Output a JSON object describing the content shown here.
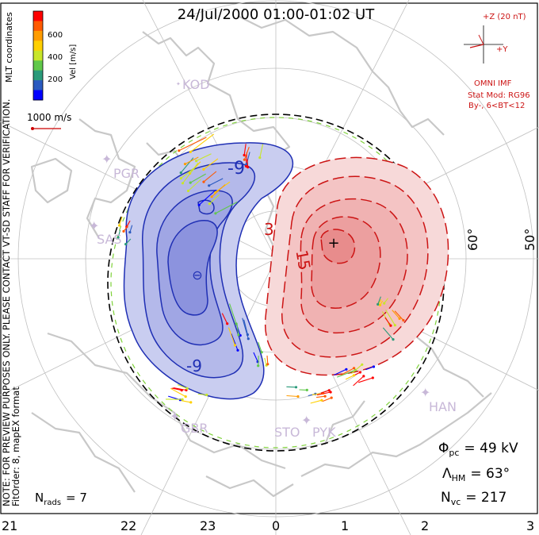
{
  "title": "24/Jul/2000 01:00-01:02 UT",
  "coord_label": "MLT coordinates",
  "color_bar": {
    "label": "Vel [m/s]",
    "ticks": [
      "600",
      "400",
      "200"
    ],
    "colors": [
      "#ff0000",
      "#ff5a00",
      "#ff9c00",
      "#ffd000",
      "#c8e62a",
      "#60c84a",
      "#2a9a7a",
      "#2a5ac0",
      "#0000ff"
    ]
  },
  "scale_vector": {
    "label": "1000 m/s",
    "color": "#cc0000"
  },
  "side_notes": [
    "NOTE: FOR PREVIEW PURPOSES ONLY. PLEASE CONTACT VT-SD STAFF FOR VERIFICATION.",
    "FitOrder: 8, mapEX format"
  ],
  "imf": {
    "z_label": "+Z (20 nT)",
    "y_label": "+Y",
    "source": "OMNI IMF",
    "model": "Stat Mod: RG96",
    "condition": "By-, 6<BT<12"
  },
  "latitude_labels": [
    "60°",
    "50°"
  ],
  "mlt_labels": [
    "21",
    "22",
    "23",
    "0",
    "1",
    "2",
    "3"
  ],
  "stations": [
    "KOD",
    "PGR",
    "SAS",
    "GBR",
    "STO",
    "PYK",
    "HAN"
  ],
  "contours": {
    "negative_label": "-9",
    "negative_label_lower": "-9",
    "positive_label": "3",
    "positive_label_inner": "15"
  },
  "stats": {
    "phi_pc_symbol": "Φ",
    "phi_pc_sub": "pc",
    "phi_pc_value": "= 49 kV",
    "lambda_symbol": "Λ",
    "lambda_sub": "HM",
    "lambda_value": "= 63°",
    "nvc_symbol": "N",
    "nvc_sub": "vc",
    "nvc_value": "= 217",
    "nrads_symbol": "N",
    "nrads_sub": "rads",
    "nrads_value": "= 7"
  },
  "colors": {
    "negative": "#1f2fb4",
    "negative_fill": "#c9cdf0",
    "positive": "#cc1414",
    "positive_fill": "#f7cccc",
    "coast": "#c8c8c8",
    "grid": "#c0c0c0",
    "station": "#c8b8d8"
  }
}
